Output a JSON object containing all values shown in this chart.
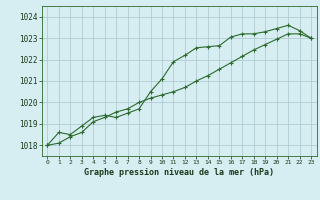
{
  "title": "Graphe pression niveau de la mer (hPa)",
  "bg_color": "#d6eef2",
  "grid_color": "#b0cdd4",
  "line_color": "#2d6a2d",
  "xlim": [
    -0.5,
    23.5
  ],
  "ylim": [
    1017.5,
    1024.5
  ],
  "yticks": [
    1018,
    1019,
    1020,
    1021,
    1022,
    1023,
    1024
  ],
  "xticks": [
    0,
    1,
    2,
    3,
    4,
    5,
    6,
    7,
    8,
    9,
    10,
    11,
    12,
    13,
    14,
    15,
    16,
    17,
    18,
    19,
    20,
    21,
    22,
    23
  ],
  "series1": [
    1018.0,
    1018.6,
    1018.5,
    1018.9,
    1019.3,
    1019.4,
    1019.3,
    1019.5,
    1019.7,
    1020.5,
    1021.1,
    1021.9,
    1022.2,
    1022.55,
    1022.6,
    1022.65,
    1023.05,
    1023.2,
    1023.2,
    1023.3,
    1023.45,
    1023.6,
    1023.35,
    1023.0
  ],
  "series2": [
    1018.0,
    1018.1,
    1018.4,
    1018.6,
    1019.1,
    1019.3,
    1019.55,
    1019.7,
    1020.0,
    1020.2,
    1020.35,
    1020.5,
    1020.7,
    1021.0,
    1021.25,
    1021.55,
    1021.85,
    1022.15,
    1022.45,
    1022.7,
    1022.95,
    1023.2,
    1023.2,
    1023.0
  ],
  "title_fontsize": 6.0,
  "xlabel_fontsize": 5.0,
  "ylabel_fontsize": 6.0
}
